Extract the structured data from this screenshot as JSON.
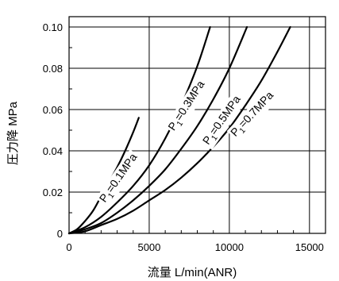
{
  "chart_data": {
    "type": "line",
    "xlabel": "流量 L/min(ANR)",
    "ylabel": "圧力降 MPa",
    "xlim": [
      0,
      16000
    ],
    "ylim": [
      0,
      0.105
    ],
    "x_ticks": [
      "0",
      "5000",
      "10000",
      "15000"
    ],
    "y_ticks": [
      "0",
      "0.02",
      "0.04",
      "0.06",
      "0.08",
      "0.10"
    ],
    "grid": true,
    "series": [
      {
        "name": "P1=0.1MPa",
        "label": {
          "main": "P",
          "sub": "1",
          "rest": "=0.1MPa"
        },
        "x": [
          0,
          500,
          1000,
          1500,
          2000,
          2500,
          3000,
          3500,
          4000,
          4350
        ],
        "y": [
          0,
          0.002,
          0.006,
          0.011,
          0.018,
          0.025,
          0.032,
          0.04,
          0.049,
          0.056
        ]
      },
      {
        "name": "P1=0.3MPa",
        "label": {
          "main": "P",
          "sub": "1",
          "rest": "=0.3MPa"
        },
        "x": [
          0,
          1000,
          2000,
          3000,
          4000,
          5000,
          6000,
          7000,
          8000,
          8800
        ],
        "y": [
          0,
          0.003,
          0.008,
          0.015,
          0.023,
          0.033,
          0.046,
          0.062,
          0.081,
          0.1
        ]
      },
      {
        "name": "P1=0.5MPa",
        "label": {
          "main": "P",
          "sub": "1",
          "rest": "=0.5MPa"
        },
        "x": [
          0,
          1000,
          2000,
          3000,
          4000,
          5000,
          6000,
          7000,
          8000,
          9000,
          10000,
          11100
        ],
        "y": [
          0,
          0.002,
          0.005,
          0.01,
          0.016,
          0.023,
          0.031,
          0.041,
          0.052,
          0.065,
          0.08,
          0.1
        ]
      },
      {
        "name": "P1=0.7MPa",
        "label": {
          "main": "P",
          "sub": "1",
          "rest": "=0.7MPa"
        },
        "x": [
          0,
          1000,
          2000,
          3000,
          4000,
          5000,
          6000,
          7000,
          8000,
          9000,
          10000,
          11000,
          12000,
          13000,
          13800
        ],
        "y": [
          0,
          0.001,
          0.004,
          0.007,
          0.011,
          0.016,
          0.021,
          0.027,
          0.034,
          0.042,
          0.051,
          0.062,
          0.074,
          0.088,
          0.1
        ]
      }
    ]
  }
}
